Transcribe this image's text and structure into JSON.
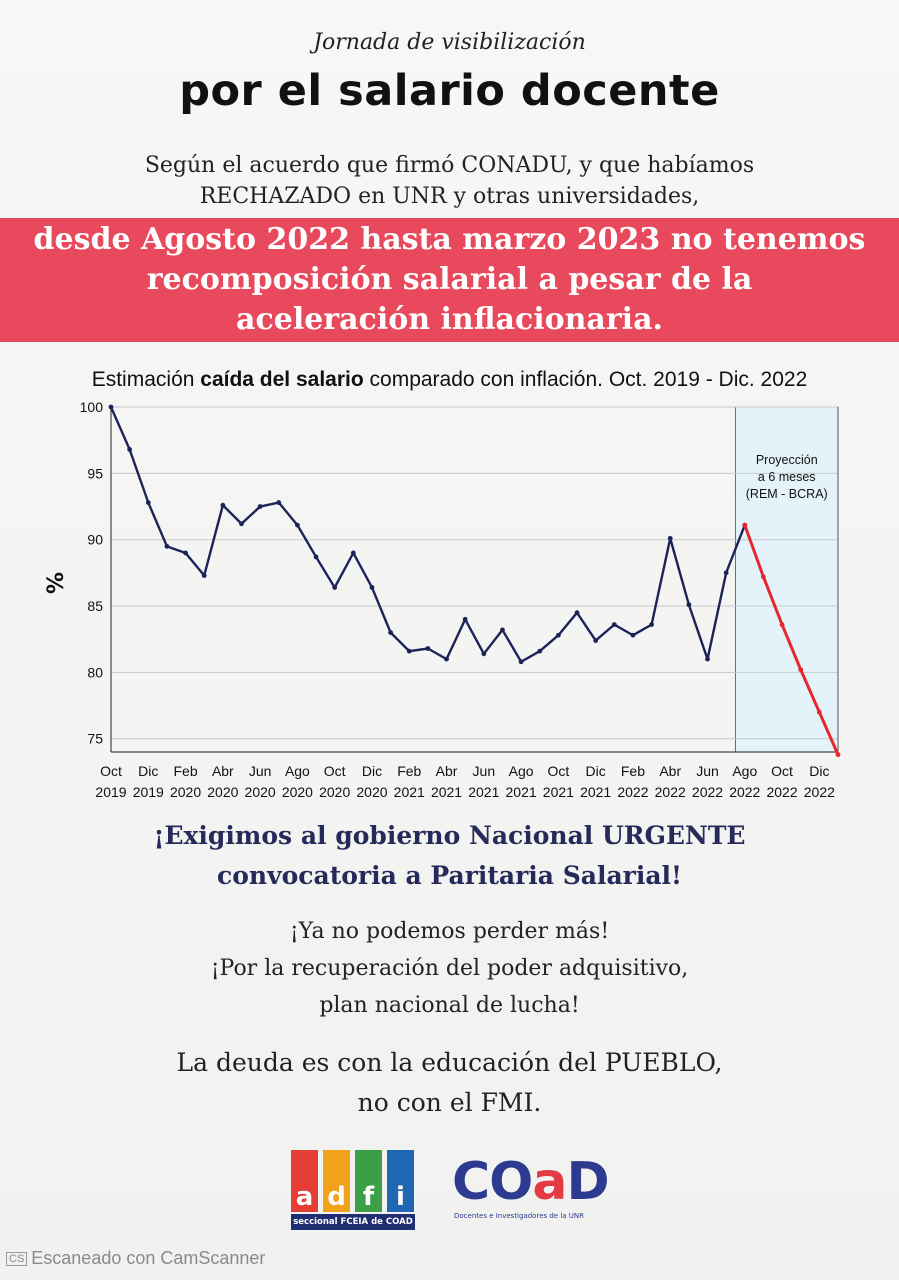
{
  "kicker": "Jornada de visibilización",
  "headline": "por el salario docente",
  "intro": {
    "line1": "Según el acuerdo que firmó CONADU, y que habíamos",
    "line2": "RECHAZADO en UNR y otras universidades,"
  },
  "band": {
    "line1": "desde Agosto 2022 hasta marzo 2023 no tenemos",
    "line2": "recomposición salarial a pesar de la",
    "line3": "aceleración inflacionaria."
  },
  "colors": {
    "band": "#e9495c",
    "series": "#1c2359",
    "projection": "#e8262e",
    "projection_fill": "#e3f3f9",
    "demand_text": "#262a5a"
  },
  "chart_data": {
    "type": "line",
    "title_pre": "Estimación",
    "title_bold": "caída del salario",
    "title_post": "comparado con inflación. Oct. 2019 - Dic. 2022",
    "ylabel": "%",
    "ylim": [
      74,
      100
    ],
    "yticks": [
      75,
      80,
      85,
      90,
      95,
      100
    ],
    "xtick_labels": [
      [
        "Oct",
        "2019"
      ],
      [
        "Dic",
        "2019"
      ],
      [
        "Feb",
        "2020"
      ],
      [
        "Abr",
        "2020"
      ],
      [
        "Jun",
        "2020"
      ],
      [
        "Ago",
        "2020"
      ],
      [
        "Oct",
        "2020"
      ],
      [
        "Dic",
        "2020"
      ],
      [
        "Feb",
        "2021"
      ],
      [
        "Abr",
        "2021"
      ],
      [
        "Jun",
        "2021"
      ],
      [
        "Ago",
        "2021"
      ],
      [
        "Oct",
        "2021"
      ],
      [
        "Dic",
        "2021"
      ],
      [
        "Feb",
        "2022"
      ],
      [
        "Abr",
        "2022"
      ],
      [
        "Jun",
        "2022"
      ],
      [
        "Ago",
        "2022"
      ],
      [
        "Oct",
        "2022"
      ],
      [
        "Dic",
        "2022"
      ]
    ],
    "series": [
      {
        "values": [
          100,
          96.8,
          92.8,
          89.5,
          89.0,
          87.3,
          92.6,
          91.2,
          92.5,
          92.8,
          91.1,
          88.7,
          86.4,
          89.0,
          86.4,
          83.0,
          81.6,
          81.8,
          81.0,
          84.0,
          81.4,
          83.2,
          80.8,
          81.6,
          82.8,
          84.5,
          82.4,
          83.6,
          82.8,
          83.6,
          90.1,
          85.1,
          81.0,
          87.5,
          91.1
        ]
      },
      {
        "start_index": 34,
        "values": [
          91.1,
          87.2,
          83.6,
          80.2,
          77.0,
          73.8
        ]
      }
    ],
    "projection_start_index": 33.5,
    "annotation": [
      "Proyección",
      "a 6 meses",
      "(REM - BCRA)"
    ],
    "grid": true
  },
  "demand": {
    "line1": "¡Exigimos al gobierno Nacional URGENTE",
    "line2": "convocatoria a Paritaria Salarial!"
  },
  "slogans": {
    "line1": "¡Ya no podemos perder más!",
    "line2": "¡Por la recuperación del poder adquisitivo,",
    "line3": "plan nacional de lucha!"
  },
  "debt": {
    "line1": "La deuda es con la educación del PUEBLO,",
    "line2": "no con el FMI."
  },
  "logo_adfi": {
    "letters": [
      "a",
      "d",
      "f",
      "i"
    ],
    "tile_colors": [
      "#e63e36",
      "#f0a21c",
      "#3d9f45",
      "#1f66b3"
    ],
    "subtitle": "seccional FCEIA de COAD"
  },
  "logo_coad": {
    "pre": "CO",
    "accent": "a",
    "post": "D",
    "tagline": "Docentes e Investigadores de la UNR"
  },
  "watermark": {
    "badge": "CS",
    "text": "Escaneado con CamScanner"
  }
}
